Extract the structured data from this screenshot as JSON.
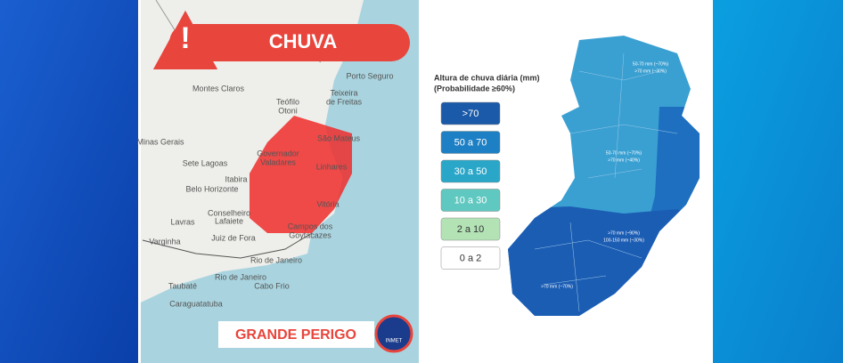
{
  "alert": {
    "title": "CHUVA",
    "level": "GRANDE PERIGO",
    "logo": "INMET"
  },
  "left_map": {
    "cities": [
      "Montes Claros",
      "Teófilo",
      "Otoni",
      "Porto Seguro",
      "Teixeira",
      "de Freitas",
      "São Mateus",
      "Governador",
      "Valadares",
      "Minas Gerais",
      "Sete Lagoas",
      "Itabira",
      "Belo Horizonte",
      "Linhares",
      "Vitória",
      "Conselheiro",
      "Lafaiete",
      "Lavras",
      "Juiz de Fora",
      "Campos dos",
      "Goytacazes",
      "Varginha",
      "Rio de Janeiro",
      "Rio de Janeiro",
      "Taubaté",
      "Cabo Frio",
      "Caraguatatuba"
    ]
  },
  "right_map": {
    "legend_title": "Altura de chuva diária (mm)",
    "legend_subtitle": "(Probabilidade ≥60%)",
    "legend": [
      {
        "label": ">70",
        "color": "#1b5aa8"
      },
      {
        "label": "50 a 70",
        "color": "#1e80c4"
      },
      {
        "label": "30 a 50",
        "color": "#2aa7c8"
      },
      {
        "label": "10 a 30",
        "color": "#5fc8c0"
      },
      {
        "label": "2 a 10",
        "color": "#b3e2b5"
      },
      {
        "label": "0 a 2",
        "color": "#ffffff"
      }
    ],
    "annotations": [
      "50-70 mm (~70%)",
      ">70 mm (~30%)",
      "50-70 mm (~70%)",
      ">70 mm (~40%)",
      ">70 mm (~90%)",
      "100-150 mm (~30%)",
      ">70 mm (~70%)"
    ]
  }
}
